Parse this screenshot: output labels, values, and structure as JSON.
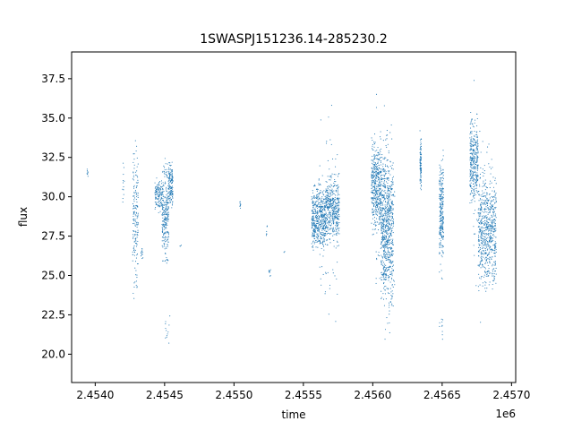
{
  "chart_data": {
    "type": "scatter",
    "title": "1SWASPJ151236.14-285230.2",
    "xlabel": "time",
    "ylabel": "flux",
    "x_offset_label": "1e6",
    "xlim": [
      2453830,
      2457030
    ],
    "ylim": [
      18.2,
      39.2
    ],
    "x_ticks": [
      2454000,
      2454500,
      2455000,
      2455500,
      2456000,
      2456500,
      2457000
    ],
    "x_tick_labels": [
      "2.4540",
      "2.4545",
      "2.4550",
      "2.4555",
      "2.4560",
      "2.4565",
      "2.4570"
    ],
    "y_ticks": [
      20.0,
      22.5,
      25.0,
      27.5,
      30.0,
      32.5,
      35.0,
      37.5
    ],
    "y_tick_labels": [
      "20.0",
      "22.5",
      "25.0",
      "27.5",
      "30.0",
      "32.5",
      "35.0",
      "37.5"
    ],
    "grid": false,
    "marker_color": "#1f77b4",
    "clusters": [
      {
        "x_start": 2453940,
        "x_end": 2453950,
        "y_low": 31.0,
        "y_high": 31.9,
        "count": 8
      },
      {
        "x_start": 2454195,
        "x_end": 2454210,
        "y_low": 28.0,
        "y_high": 34.2,
        "count": 12
      },
      {
        "x_start": 2454270,
        "x_end": 2454310,
        "y_low": 22.3,
        "y_high": 34.8,
        "count": 170
      },
      {
        "x_start": 2454330,
        "x_end": 2454345,
        "y_low": 26.0,
        "y_high": 27.0,
        "count": 12
      },
      {
        "x_start": 2454430,
        "x_end": 2454480,
        "y_low": 28.8,
        "y_high": 31.5,
        "count": 120
      },
      {
        "x_start": 2454480,
        "x_end": 2454530,
        "y_low": 24.8,
        "y_high": 33.0,
        "count": 260
      },
      {
        "x_start": 2454530,
        "x_end": 2454560,
        "y_low": 28.5,
        "y_high": 32.7,
        "count": 140
      },
      {
        "x_start": 2454500,
        "x_end": 2454540,
        "y_low": 19.5,
        "y_high": 23.0,
        "count": 12
      },
      {
        "x_start": 2454610,
        "x_end": 2454620,
        "y_low": 26.8,
        "y_high": 27.0,
        "count": 3
      },
      {
        "x_start": 2455040,
        "x_end": 2455050,
        "y_low": 29.0,
        "y_high": 29.9,
        "count": 10
      },
      {
        "x_start": 2455230,
        "x_end": 2455240,
        "y_low": 27.3,
        "y_high": 28.5,
        "count": 6
      },
      {
        "x_start": 2455250,
        "x_end": 2455265,
        "y_low": 24.5,
        "y_high": 25.8,
        "count": 8
      },
      {
        "x_start": 2455360,
        "x_end": 2455370,
        "y_low": 26.4,
        "y_high": 26.6,
        "count": 2
      },
      {
        "x_start": 2455560,
        "x_end": 2455660,
        "y_low": 25.8,
        "y_high": 31.5,
        "count": 480
      },
      {
        "x_start": 2455660,
        "x_end": 2455760,
        "y_low": 26.5,
        "y_high": 32.0,
        "count": 420
      },
      {
        "x_start": 2455600,
        "x_end": 2455760,
        "y_low": 19.5,
        "y_high": 38.5,
        "count": 80
      },
      {
        "x_start": 2455990,
        "x_end": 2456060,
        "y_low": 26.8,
        "y_high": 34.5,
        "count": 420
      },
      {
        "x_start": 2456060,
        "x_end": 2456150,
        "y_low": 21.0,
        "y_high": 35.0,
        "count": 700
      },
      {
        "x_start": 2456020,
        "x_end": 2456160,
        "y_low": 19.2,
        "y_high": 37.8,
        "count": 110
      },
      {
        "x_start": 2456340,
        "x_end": 2456350,
        "y_low": 29.8,
        "y_high": 34.5,
        "count": 90
      },
      {
        "x_start": 2456480,
        "x_end": 2456510,
        "y_low": 24.5,
        "y_high": 33.5,
        "count": 260
      },
      {
        "x_start": 2456480,
        "x_end": 2456510,
        "y_low": 20.5,
        "y_high": 23.0,
        "count": 10
      },
      {
        "x_start": 2456700,
        "x_end": 2456760,
        "y_low": 28.5,
        "y_high": 36.0,
        "count": 330
      },
      {
        "x_start": 2456760,
        "x_end": 2456890,
        "y_low": 23.0,
        "y_high": 33.0,
        "count": 620
      },
      {
        "x_start": 2456720,
        "x_end": 2456890,
        "y_low": 20.2,
        "y_high": 38.3,
        "count": 60
      }
    ]
  }
}
